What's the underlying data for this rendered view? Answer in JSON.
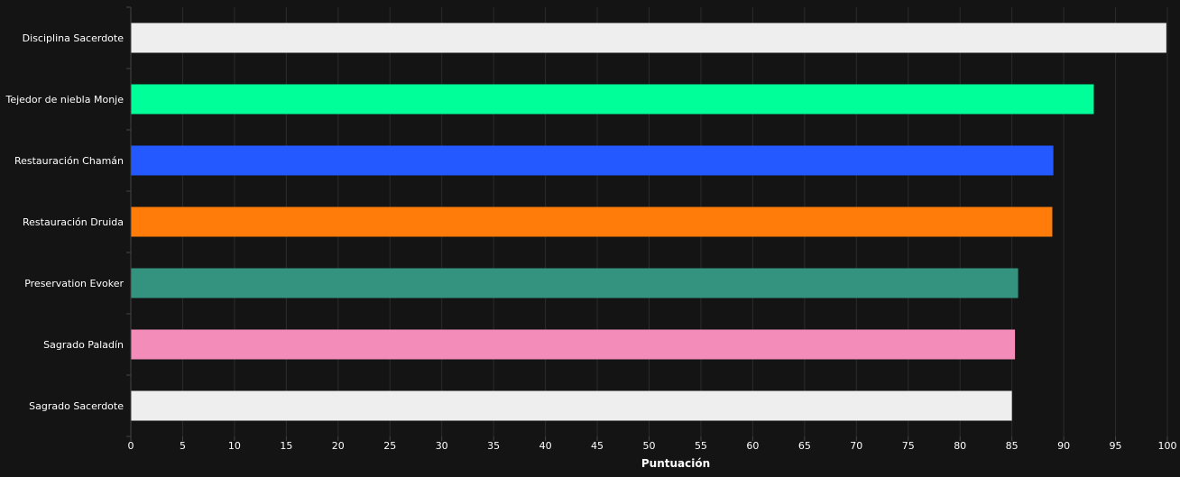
{
  "chart_data": {
    "type": "bar",
    "orientation": "horizontal",
    "categories": [
      "Disciplina Sacerdote",
      "Tejedor de niebla Monje",
      "Restauración Chamán",
      "Restauración Druida",
      "Preservation Evoker",
      "Sagrado Paladín",
      "Sagrado Sacerdote"
    ],
    "values": [
      99.9,
      92.9,
      89.0,
      88.9,
      85.6,
      85.3,
      85.0
    ],
    "colors": [
      "#eeeeee",
      "#00ff98",
      "#2459ff",
      "#ff7c0a",
      "#33937f",
      "#f48cba",
      "#eeeeee"
    ],
    "xlabel": "Puntuación",
    "ylabel": "",
    "xlim": [
      0,
      100
    ],
    "xticks": [
      0,
      5,
      10,
      15,
      20,
      25,
      30,
      35,
      40,
      45,
      50,
      55,
      60,
      65,
      70,
      75,
      80,
      85,
      90,
      95,
      100
    ],
    "grid": true,
    "background": "#141414",
    "grid_color": "#2b2b2b"
  }
}
